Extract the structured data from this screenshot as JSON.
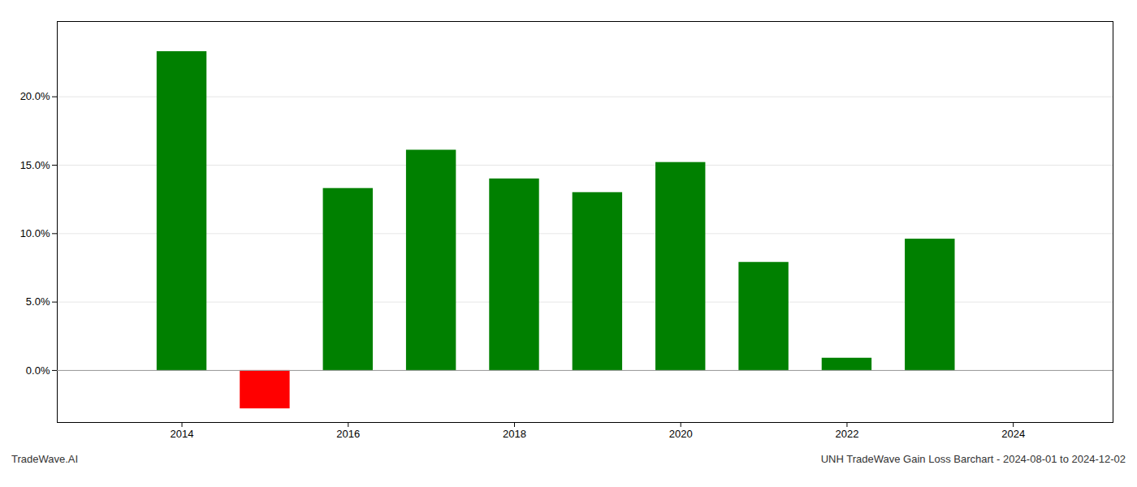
{
  "chart_data": {
    "type": "bar",
    "title": "UNH TradeWave Gain Loss Barchart - 2024-08-01 to 2024-12-02",
    "annotations": [
      "TradeWave.AI"
    ],
    "x": [
      2014,
      2015,
      2016,
      2017,
      2018,
      2019,
      2020,
      2021,
      2022,
      2023
    ],
    "values": [
      0.233,
      -0.028,
      0.133,
      0.161,
      0.14,
      0.13,
      0.152,
      0.079,
      0.009,
      0.096
    ],
    "colors": [
      "#008000",
      "#ff0000",
      "#008000",
      "#008000",
      "#008000",
      "#008000",
      "#008000",
      "#008000",
      "#008000",
      "#008000"
    ],
    "xlim": [
      2012.5,
      2025.2
    ],
    "xticks": [
      2014,
      2016,
      2018,
      2020,
      2022,
      2024
    ],
    "ylim": [
      -0.038,
      0.255
    ],
    "yticks": [
      {
        "value": 0.0,
        "label": "0.0%"
      },
      {
        "value": 0.05,
        "label": "5.0%"
      },
      {
        "value": 0.1,
        "label": "10.0%"
      },
      {
        "value": 0.15,
        "label": "15.0%"
      },
      {
        "value": 0.2,
        "label": "20.0%"
      }
    ],
    "grid": true
  }
}
